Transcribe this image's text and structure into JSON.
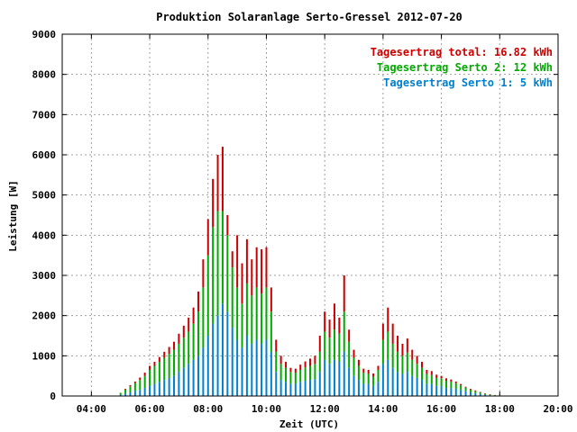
{
  "chart_data": {
    "type": "bar",
    "stacked": true,
    "title": "Produktion Solaranlage Serto-Gressel 2012-07-20",
    "xlabel": "Zeit (UTC)",
    "ylabel": "Leistung [W]",
    "xlim": [
      "03:00",
      "20:00"
    ],
    "ylim": [
      0,
      9000
    ],
    "xticks": [
      "04:00",
      "06:00",
      "08:00",
      "10:00",
      "12:00",
      "14:00",
      "16:00",
      "18:00",
      "20:00"
    ],
    "yticks": [
      "0",
      "1000",
      "2000",
      "3000",
      "4000",
      "5000",
      "6000",
      "7000",
      "8000",
      "9000"
    ],
    "grid": true,
    "legend_position": "top-right",
    "legend": [
      {
        "label": "Tagesertrag total: 16.82 kWh",
        "color": "#cc0000"
      },
      {
        "label": "Tagesertrag Serto 2: 12 kWh",
        "color": "#00aa00"
      },
      {
        "label": "Tagesertrag Serto 1: 5 kWh",
        "color": "#0080d0"
      }
    ],
    "x": [
      "05:00",
      "05:10",
      "05:20",
      "05:30",
      "05:40",
      "05:50",
      "06:00",
      "06:10",
      "06:20",
      "06:30",
      "06:40",
      "06:50",
      "07:00",
      "07:10",
      "07:20",
      "07:30",
      "07:40",
      "07:50",
      "08:00",
      "08:10",
      "08:20",
      "08:30",
      "08:40",
      "08:50",
      "09:00",
      "09:10",
      "09:20",
      "09:30",
      "09:40",
      "09:50",
      "10:00",
      "10:10",
      "10:20",
      "10:30",
      "10:40",
      "10:50",
      "11:00",
      "11:10",
      "11:20",
      "11:30",
      "11:40",
      "11:50",
      "12:00",
      "12:10",
      "12:20",
      "12:30",
      "12:40",
      "12:50",
      "13:00",
      "13:10",
      "13:20",
      "13:30",
      "13:40",
      "13:50",
      "14:00",
      "14:10",
      "14:20",
      "14:30",
      "14:40",
      "14:50",
      "15:00",
      "15:10",
      "15:20",
      "15:30",
      "15:40",
      "15:50",
      "16:00",
      "16:10",
      "16:20",
      "16:30",
      "16:40",
      "16:50",
      "17:00",
      "17:10",
      "17:20",
      "17:30",
      "17:40",
      "17:50"
    ],
    "series": [
      {
        "name": "Serto 1",
        "color": "#0080d0",
        "values": [
          30,
          60,
          90,
          120,
          150,
          200,
          250,
          300,
          350,
          400,
          450,
          500,
          600,
          700,
          800,
          900,
          1000,
          1200,
          1500,
          1800,
          2000,
          2300,
          2100,
          1700,
          1400,
          1200,
          1500,
          1300,
          1400,
          1300,
          1400,
          1100,
          600,
          400,
          350,
          300,
          300,
          350,
          380,
          400,
          420,
          600,
          900,
          800,
          900,
          850,
          1100,
          700,
          500,
          400,
          300,
          300,
          250,
          350,
          800,
          900,
          700,
          600,
          550,
          600,
          500,
          450,
          400,
          300,
          300,
          250,
          250,
          200,
          200,
          180,
          150,
          120,
          90,
          70,
          50,
          30,
          20,
          10
        ]
      },
      {
        "name": "Serto 2",
        "color": "#00aa00",
        "values": [
          50,
          100,
          150,
          200,
          250,
          300,
          400,
          450,
          500,
          550,
          600,
          650,
          700,
          750,
          800,
          900,
          1100,
          1500,
          2000,
          2400,
          2600,
          2300,
          1900,
          1500,
          1300,
          1100,
          1300,
          1200,
          1300,
          1250,
          1300,
          1000,
          500,
          400,
          350,
          300,
          280,
          300,
          330,
          350,
          380,
          500,
          700,
          650,
          750,
          700,
          1000,
          650,
          450,
          350,
          280,
          250,
          230,
          300,
          600,
          700,
          600,
          500,
          450,
          480,
          400,
          350,
          300,
          250,
          220,
          200,
          190,
          180,
          160,
          140,
          120,
          90,
          70,
          50,
          40,
          25,
          15,
          10
        ]
      },
      {
        "name": "total",
        "color": "#cc0000",
        "values": [
          0,
          20,
          30,
          40,
          60,
          80,
          100,
          100,
          120,
          150,
          170,
          200,
          250,
          300,
          350,
          400,
          500,
          700,
          900,
          1200,
          1400,
          1600,
          500,
          400,
          1300,
          1000,
          1100,
          900,
          1000,
          1100,
          1000,
          600,
          300,
          200,
          150,
          100,
          100,
          130,
          150,
          180,
          200,
          400,
          500,
          450,
          650,
          400,
          900,
          300,
          200,
          150,
          100,
          100,
          80,
          100,
          400,
          600,
          500,
          400,
          300,
          350,
          250,
          200,
          150,
          100,
          100,
          80,
          60,
          60,
          50,
          40,
          30,
          20,
          20,
          20,
          10,
          10,
          10,
          5
        ]
      }
    ]
  }
}
